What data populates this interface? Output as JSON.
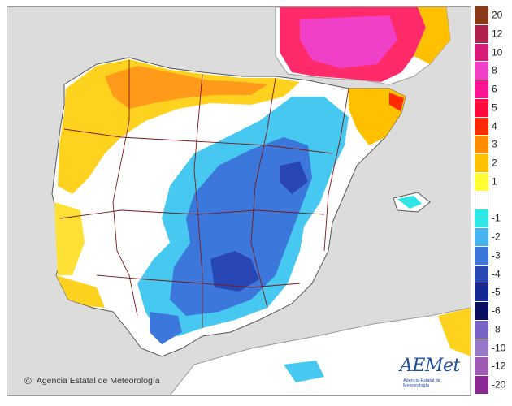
{
  "map": {
    "credit": "Agencia Estatal de Meteorología",
    "copyright_symbol": "©",
    "logo": {
      "wordmark": "AEMet",
      "subtitle": "Agencia Estatal de Meteorología",
      "color": "#1f4e9e"
    },
    "colors": {
      "sea": "#dcdcdc",
      "land": "#ffffff",
      "borders": "#7a1a1a"
    }
  },
  "legend": {
    "entries": [
      {
        "label": "20",
        "color": "#8b3a1a"
      },
      {
        "label": "12",
        "color": "#b0204a"
      },
      {
        "label": "10",
        "color": "#d81b78"
      },
      {
        "label": "8",
        "color": "#f040c8"
      },
      {
        "label": "6",
        "color": "#ff1493"
      },
      {
        "label": "5",
        "color": "#ff0a3c"
      },
      {
        "label": "4",
        "color": "#ff2a00"
      },
      {
        "label": "3",
        "color": "#ff8c00"
      },
      {
        "label": "2",
        "color": "#ffc000"
      },
      {
        "label": "1",
        "color": "#ffff33"
      },
      {
        "label": "",
        "color": "#ffffff"
      },
      {
        "label": "-1",
        "color": "#2ee6e6"
      },
      {
        "label": "-2",
        "color": "#46b4f0"
      },
      {
        "label": "-3",
        "color": "#3c78dc"
      },
      {
        "label": "-4",
        "color": "#2846b4"
      },
      {
        "label": "-5",
        "color": "#142896"
      },
      {
        "label": "-6",
        "color": "#0a0f64"
      },
      {
        "label": "-8",
        "color": "#7864c8"
      },
      {
        "label": "-10",
        "color": "#9678c8"
      },
      {
        "label": "-12",
        "color": "#a05ab4"
      },
      {
        "label": "-20",
        "color": "#8c2896"
      }
    ]
  }
}
